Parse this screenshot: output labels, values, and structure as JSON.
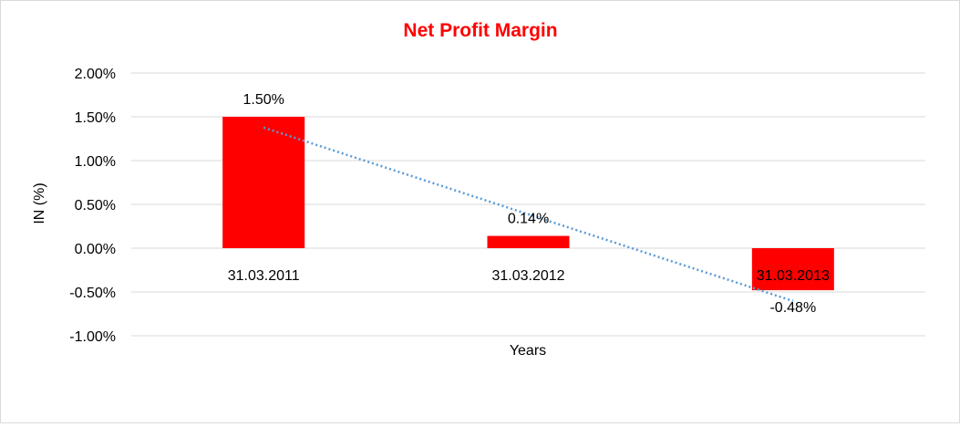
{
  "chart_data": {
    "type": "bar",
    "title": "Net Profit Margin",
    "xlabel": "Years",
    "ylabel": "IN (%)",
    "categories": [
      "31.03.2011",
      "31.03.2012",
      "31.03.2013"
    ],
    "values": [
      1.5,
      0.14,
      -0.48
    ],
    "data_labels": [
      "1.50%",
      "0.14%",
      "-0.48%"
    ],
    "ylim": [
      -1.0,
      2.0
    ],
    "yticks": [
      2.0,
      1.5,
      1.0,
      0.5,
      0.0,
      -0.5,
      -1.0
    ],
    "ytick_labels": [
      "2.00%",
      "1.50%",
      "1.00%",
      "0.50%",
      "0.00%",
      "-0.50%",
      "-1.00%"
    ],
    "grid": true,
    "legend": "none",
    "trendline": {
      "type": "linear",
      "style": "dotted",
      "color": "#5b9bd5"
    },
    "colors": {
      "bar": "#ff0000",
      "title": "#ff0000",
      "grid": "#d9d9d9",
      "text": "#000000"
    }
  }
}
